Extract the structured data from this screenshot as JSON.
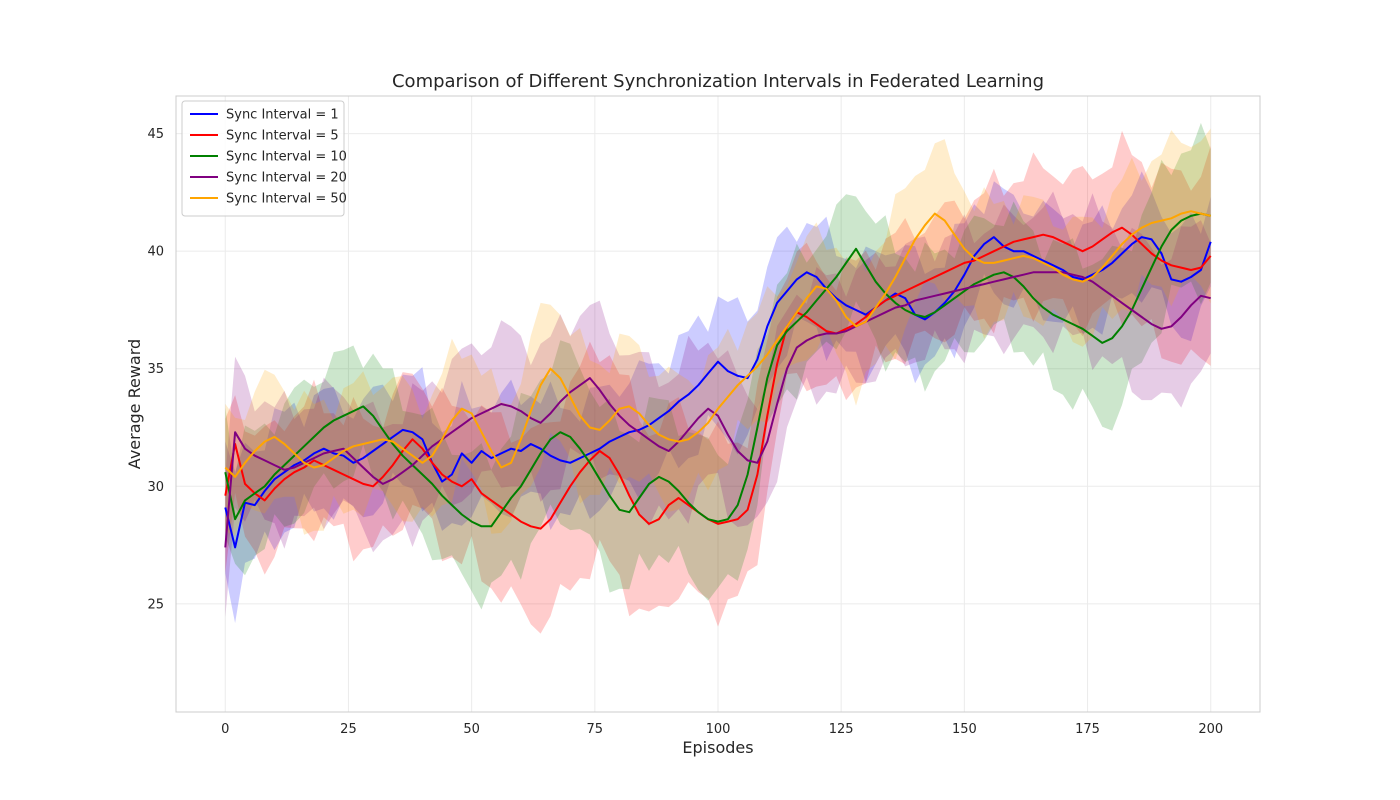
{
  "chart_data": {
    "type": "line",
    "title": "Comparison of Different Synchronization Intervals in Federated Learning",
    "xlabel": "Episodes",
    "ylabel": "Average Reward",
    "xlim": [
      -10,
      210
    ],
    "ylim": [
      20.4,
      46.6
    ],
    "xticks": [
      0,
      25,
      50,
      75,
      100,
      125,
      150,
      175,
      200
    ],
    "yticks": [
      25,
      30,
      35,
      40,
      45
    ],
    "grid": true,
    "legend_position": "upper-left",
    "shaded_band": "mean ± std (approx.)",
    "x_step": 2,
    "series": [
      {
        "name": "Sync Interval = 1",
        "color": "#0000ff",
        "mean": [
          29.1,
          27.4,
          29.3,
          29.2,
          29.8,
          30.3,
          30.6,
          30.9,
          31.1,
          31.4,
          31.6,
          31.4,
          31.3,
          31.0,
          31.2,
          31.5,
          31.8,
          32.1,
          32.4,
          32.3,
          32.0,
          31.0,
          30.2,
          30.5,
          31.4,
          31.0,
          31.5,
          31.2,
          31.4,
          31.6,
          31.5,
          31.8,
          31.6,
          31.3,
          31.1,
          31.0,
          31.2,
          31.4,
          31.6,
          31.9,
          32.1,
          32.3,
          32.4,
          32.6,
          32.9,
          33.2,
          33.6,
          33.9,
          34.3,
          34.8,
          35.3,
          34.9,
          34.7,
          34.6,
          35.4,
          36.8,
          37.8,
          38.3,
          38.8,
          39.1,
          38.9,
          38.4,
          38.0,
          37.7,
          37.5,
          37.3,
          37.6,
          37.9,
          38.2,
          38.0,
          37.3,
          37.1,
          37.4,
          37.8,
          38.3,
          39.0,
          39.8,
          40.3,
          40.6,
          40.2,
          40.0,
          40.0,
          39.8,
          39.6,
          39.4,
          39.2,
          38.9,
          38.8,
          39.0,
          39.2,
          39.5,
          39.9,
          40.3,
          40.6,
          40.5,
          39.9,
          38.8,
          38.7,
          38.9,
          39.2,
          40.4
        ],
        "std": [
          2.8,
          2.6,
          2.5,
          2.5,
          2.4,
          2.4,
          2.4,
          2.4,
          2.3,
          2.3,
          2.3,
          2.3,
          2.3,
          2.3,
          2.3,
          2.3,
          2.3,
          2.3,
          2.3,
          2.3,
          2.3,
          2.3,
          2.3,
          2.3,
          2.3,
          2.3,
          2.3,
          2.3,
          2.3,
          2.3,
          2.3,
          2.3,
          2.3,
          2.3,
          2.3,
          2.3,
          2.3,
          2.3,
          2.3,
          2.3,
          2.3,
          2.3,
          2.4,
          2.4,
          2.4,
          2.4,
          2.4,
          2.5,
          2.5,
          2.6,
          2.8,
          2.8,
          2.7,
          2.7,
          2.6,
          2.5,
          2.4,
          2.3,
          2.3,
          2.2,
          2.2,
          2.2,
          2.2,
          2.2,
          2.2,
          2.2,
          2.2,
          2.2,
          2.2,
          2.2,
          2.2,
          2.1,
          2.1,
          2.1,
          2.1,
          2.1,
          2.1,
          2.1,
          2.1,
          2.1,
          2.1,
          2.1,
          2.1,
          2.1,
          2.1,
          2.1,
          2.1,
          2.1,
          2.1,
          2.1,
          2.1,
          2.1,
          2.1,
          2.1,
          2.1,
          2.1,
          2.1,
          2.1,
          2.1,
          2.1,
          2.1
        ]
      },
      {
        "name": "Sync Interval = 5",
        "color": "#ff0000",
        "mean": [
          29.6,
          31.8,
          30.1,
          29.7,
          29.4,
          29.9,
          30.3,
          30.6,
          30.8,
          31.1,
          30.9,
          30.7,
          30.5,
          30.3,
          30.1,
          30.0,
          30.4,
          30.9,
          31.5,
          32.0,
          31.6,
          31.0,
          30.5,
          30.2,
          30.0,
          30.3,
          29.7,
          29.4,
          29.1,
          28.8,
          28.5,
          28.3,
          28.2,
          28.6,
          29.3,
          30.0,
          30.6,
          31.1,
          31.5,
          31.2,
          30.5,
          29.6,
          28.8,
          28.4,
          28.6,
          29.2,
          29.5,
          29.2,
          28.9,
          28.6,
          28.4,
          28.5,
          28.6,
          29.0,
          30.5,
          33.0,
          35.2,
          36.8,
          37.4,
          37.2,
          36.9,
          36.6,
          36.5,
          36.7,
          36.9,
          37.2,
          37.6,
          37.9,
          38.1,
          38.3,
          38.5,
          38.7,
          38.9,
          39.1,
          39.3,
          39.5,
          39.6,
          39.8,
          40.0,
          40.2,
          40.4,
          40.5,
          40.6,
          40.7,
          40.6,
          40.4,
          40.2,
          40.0,
          40.2,
          40.5,
          40.8,
          41.0,
          40.7,
          40.3,
          39.9,
          39.6,
          39.4,
          39.3,
          39.2,
          39.3,
          39.8
        ],
        "std": [
          2.5,
          2.5,
          2.6,
          2.6,
          2.6,
          2.6,
          2.6,
          2.6,
          2.6,
          2.6,
          2.6,
          2.6,
          2.6,
          2.7,
          2.7,
          2.7,
          2.7,
          2.8,
          2.8,
          2.8,
          2.9,
          2.9,
          3.0,
          3.1,
          3.2,
          3.3,
          3.4,
          3.5,
          3.6,
          3.7,
          3.8,
          3.9,
          4.0,
          4.1,
          4.2,
          4.3,
          4.3,
          4.4,
          4.5,
          4.5,
          4.4,
          4.3,
          4.2,
          4.1,
          4.0,
          3.9,
          3.8,
          3.7,
          3.7,
          3.6,
          3.5,
          3.5,
          3.4,
          3.3,
          3.2,
          3.0,
          2.8,
          2.7,
          2.6,
          2.6,
          2.5,
          2.5,
          2.5,
          2.5,
          2.5,
          2.5,
          2.5,
          2.5,
          2.5,
          2.5,
          2.5,
          2.5,
          2.5,
          2.5,
          2.6,
          2.6,
          2.6,
          2.6,
          2.7,
          2.7,
          2.7,
          2.8,
          2.8,
          2.8,
          2.9,
          2.9,
          3.0,
          3.0,
          3.1,
          3.1,
          3.2,
          3.3,
          3.4,
          3.5,
          3.6,
          3.7,
          3.8,
          3.9,
          4.0,
          4.1,
          4.2
        ]
      },
      {
        "name": "Sync Interval = 10",
        "color": "#008000",
        "mean": [
          30.6,
          28.6,
          29.4,
          29.7,
          30.0,
          30.5,
          30.9,
          31.3,
          31.7,
          32.1,
          32.5,
          32.8,
          33.0,
          33.2,
          33.4,
          33.0,
          32.4,
          31.8,
          31.3,
          30.9,
          30.5,
          30.1,
          29.6,
          29.2,
          28.8,
          28.5,
          28.3,
          28.3,
          28.9,
          29.5,
          30.0,
          30.7,
          31.4,
          32.0,
          32.3,
          32.1,
          31.6,
          31.0,
          30.3,
          29.6,
          29.0,
          28.9,
          29.5,
          30.1,
          30.4,
          30.2,
          29.8,
          29.3,
          28.9,
          28.6,
          28.5,
          28.6,
          29.2,
          30.5,
          32.5,
          34.6,
          36.0,
          36.6,
          37.0,
          37.4,
          37.9,
          38.4,
          38.9,
          39.5,
          40.1,
          39.4,
          38.7,
          38.2,
          37.8,
          37.5,
          37.3,
          37.2,
          37.4,
          37.7,
          38.0,
          38.3,
          38.6,
          38.8,
          39.0,
          39.1,
          38.9,
          38.5,
          38.0,
          37.6,
          37.3,
          37.1,
          36.9,
          36.7,
          36.4,
          36.1,
          36.3,
          36.8,
          37.5,
          38.4,
          39.3,
          40.2,
          40.9,
          41.3,
          41.5,
          41.6,
          41.5
        ],
        "std": [
          2.9,
          2.6,
          2.5,
          2.5,
          2.5,
          2.5,
          2.5,
          2.5,
          2.5,
          2.5,
          2.5,
          2.5,
          2.5,
          2.5,
          2.5,
          2.5,
          2.5,
          2.5,
          2.5,
          2.5,
          2.6,
          2.6,
          2.6,
          2.7,
          2.7,
          2.8,
          2.8,
          2.9,
          2.9,
          3.0,
          3.1,
          3.2,
          3.3,
          3.4,
          3.5,
          3.5,
          3.5,
          3.5,
          3.4,
          3.4,
          3.3,
          3.3,
          3.2,
          3.2,
          3.1,
          3.1,
          3.1,
          3.1,
          3.0,
          3.0,
          3.0,
          3.0,
          3.0,
          2.9,
          2.8,
          2.7,
          2.6,
          2.5,
          2.5,
          2.5,
          2.5,
          2.5,
          2.5,
          2.6,
          2.7,
          2.6,
          2.5,
          2.5,
          2.4,
          2.4,
          2.4,
          2.4,
          2.4,
          2.4,
          2.4,
          2.4,
          2.4,
          2.5,
          2.5,
          2.5,
          2.6,
          2.6,
          2.7,
          2.8,
          2.9,
          3.0,
          3.1,
          3.2,
          3.3,
          3.4,
          3.4,
          3.3,
          3.2,
          3.1,
          3.0,
          3.0,
          3.0,
          3.0,
          3.0,
          3.0,
          3.0
        ]
      },
      {
        "name": "Sync Interval = 20",
        "color": "#800080",
        "mean": [
          27.4,
          32.3,
          31.6,
          31.3,
          31.1,
          30.9,
          30.7,
          30.8,
          31.0,
          31.2,
          31.4,
          31.5,
          31.6,
          31.2,
          30.8,
          30.4,
          30.1,
          30.3,
          30.6,
          30.9,
          31.3,
          31.7,
          32.0,
          32.3,
          32.6,
          32.9,
          33.1,
          33.3,
          33.5,
          33.4,
          33.2,
          32.9,
          32.7,
          33.1,
          33.6,
          34.0,
          34.3,
          34.6,
          34.1,
          33.5,
          33.0,
          32.6,
          32.3,
          32.0,
          31.7,
          31.5,
          31.9,
          32.4,
          32.9,
          33.3,
          33.0,
          32.2,
          31.5,
          31.1,
          31.0,
          31.9,
          33.5,
          35.0,
          35.9,
          36.2,
          36.4,
          36.5,
          36.5,
          36.6,
          36.8,
          37.0,
          37.2,
          37.4,
          37.6,
          37.7,
          37.9,
          38.0,
          38.1,
          38.2,
          38.3,
          38.4,
          38.5,
          38.6,
          38.7,
          38.8,
          38.9,
          39.0,
          39.1,
          39.1,
          39.1,
          39.1,
          39.0,
          38.9,
          38.7,
          38.4,
          38.1,
          37.8,
          37.5,
          37.2,
          36.9,
          36.7,
          36.8,
          37.2,
          37.7,
          38.1,
          38.0
        ],
        "std": [
          2.9,
          2.8,
          2.7,
          2.6,
          2.6,
          2.5,
          2.5,
          2.5,
          2.5,
          2.5,
          2.5,
          2.5,
          2.5,
          2.5,
          2.5,
          2.5,
          2.6,
          2.6,
          2.6,
          2.7,
          2.7,
          2.7,
          2.8,
          2.8,
          2.9,
          2.9,
          3.0,
          3.0,
          3.1,
          3.1,
          3.1,
          3.1,
          3.1,
          3.1,
          3.1,
          3.1,
          3.1,
          3.1,
          3.1,
          3.1,
          3.1,
          3.1,
          3.1,
          3.1,
          3.1,
          3.1,
          3.1,
          3.1,
          3.1,
          3.0,
          3.0,
          3.0,
          2.9,
          2.9,
          2.8,
          2.7,
          2.6,
          2.5,
          2.4,
          2.3,
          2.3,
          2.3,
          2.3,
          2.3,
          2.3,
          2.3,
          2.3,
          2.3,
          2.3,
          2.3,
          2.3,
          2.3,
          2.3,
          2.3,
          2.4,
          2.4,
          2.4,
          2.4,
          2.5,
          2.5,
          2.5,
          2.6,
          2.6,
          2.6,
          2.7,
          2.7,
          2.8,
          2.8,
          2.9,
          2.9,
          3.0,
          3.0,
          3.1,
          3.1,
          3.2,
          3.2,
          3.2,
          3.2,
          3.2,
          3.2,
          3.2
        ]
      },
      {
        "name": "Sync Interval = 50",
        "color": "#ffa500",
        "mean": [
          30.8,
          30.4,
          31.0,
          31.5,
          31.9,
          32.1,
          31.8,
          31.4,
          31.0,
          30.8,
          30.9,
          31.2,
          31.5,
          31.7,
          31.8,
          31.9,
          32.0,
          31.9,
          31.6,
          31.3,
          31.0,
          31.3,
          32.0,
          32.8,
          33.3,
          33.1,
          32.3,
          31.5,
          30.8,
          31.0,
          32.0,
          33.2,
          34.3,
          35.0,
          34.6,
          33.8,
          33.0,
          32.5,
          32.4,
          32.8,
          33.3,
          33.4,
          33.1,
          32.6,
          32.2,
          32.0,
          31.9,
          32.0,
          32.3,
          32.7,
          33.3,
          33.8,
          34.3,
          34.7,
          35.1,
          35.6,
          36.2,
          36.8,
          37.4,
          38.0,
          38.5,
          38.4,
          37.9,
          37.2,
          36.8,
          37.0,
          37.6,
          38.2,
          38.9,
          39.7,
          40.5,
          41.1,
          41.6,
          41.3,
          40.7,
          40.1,
          39.7,
          39.5,
          39.5,
          39.6,
          39.7,
          39.8,
          39.7,
          39.5,
          39.3,
          39.0,
          38.8,
          38.7,
          38.9,
          39.3,
          39.8,
          40.3,
          40.7,
          41.0,
          41.2,
          41.3,
          41.4,
          41.6,
          41.7,
          41.6,
          41.5
        ],
        "std": [
          2.5,
          2.5,
          2.5,
          2.5,
          2.5,
          2.5,
          2.5,
          2.5,
          2.5,
          2.5,
          2.5,
          2.5,
          2.5,
          2.5,
          2.5,
          2.5,
          2.6,
          2.6,
          2.6,
          2.6,
          2.6,
          2.6,
          2.7,
          2.7,
          2.7,
          2.7,
          2.7,
          2.7,
          2.8,
          2.8,
          2.8,
          2.9,
          2.9,
          3.0,
          3.0,
          3.0,
          2.9,
          2.9,
          2.8,
          2.8,
          2.7,
          2.7,
          2.7,
          2.7,
          2.7,
          2.6,
          2.6,
          2.6,
          2.5,
          2.5,
          2.4,
          2.4,
          2.3,
          2.3,
          2.2,
          2.2,
          2.2,
          2.2,
          2.2,
          2.2,
          2.3,
          2.3,
          2.4,
          2.4,
          2.5,
          2.5,
          2.6,
          2.7,
          2.8,
          2.8,
          2.9,
          2.9,
          2.9,
          2.8,
          2.7,
          2.7,
          2.6,
          2.5,
          2.4,
          2.4,
          2.3,
          2.3,
          2.3,
          2.3,
          2.3,
          2.3,
          2.3,
          2.4,
          2.4,
          2.5,
          2.5,
          2.6,
          2.6,
          2.7,
          2.8,
          2.9,
          3.0,
          3.1,
          3.2,
          3.3,
          3.4
        ]
      }
    ]
  }
}
